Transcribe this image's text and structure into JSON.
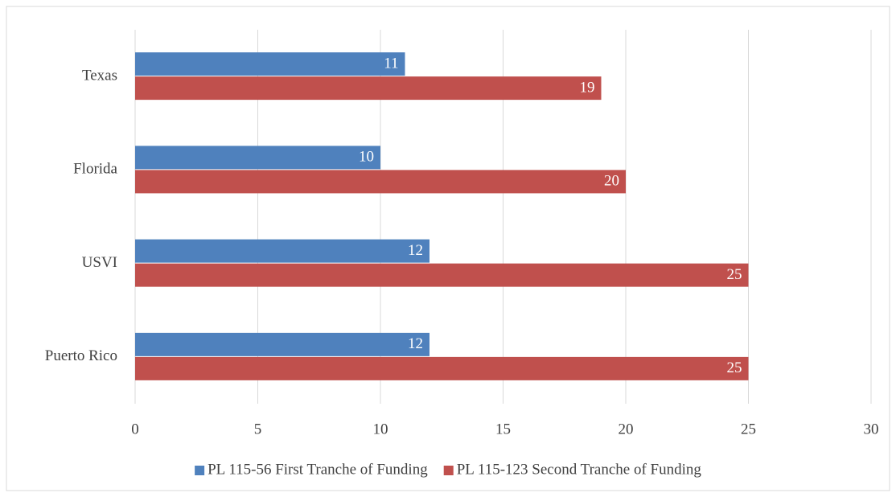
{
  "chart_data": {
    "type": "bar",
    "orientation": "horizontal",
    "categories": [
      "Texas",
      "Florida",
      "USVI",
      "Puerto Rico"
    ],
    "series": [
      {
        "name": "PL 115-56 First Tranche of Funding",
        "color": "#4f81bd",
        "values": [
          11,
          10,
          12,
          12
        ]
      },
      {
        "name": "PL 115-123 Second Tranche of Funding",
        "color": "#c0504d",
        "values": [
          19,
          20,
          25,
          25
        ]
      }
    ],
    "xlim": [
      0,
      30
    ],
    "xticks": [
      0,
      5,
      10,
      15,
      20,
      25,
      30
    ],
    "grid": true,
    "legend": "bottom"
  }
}
